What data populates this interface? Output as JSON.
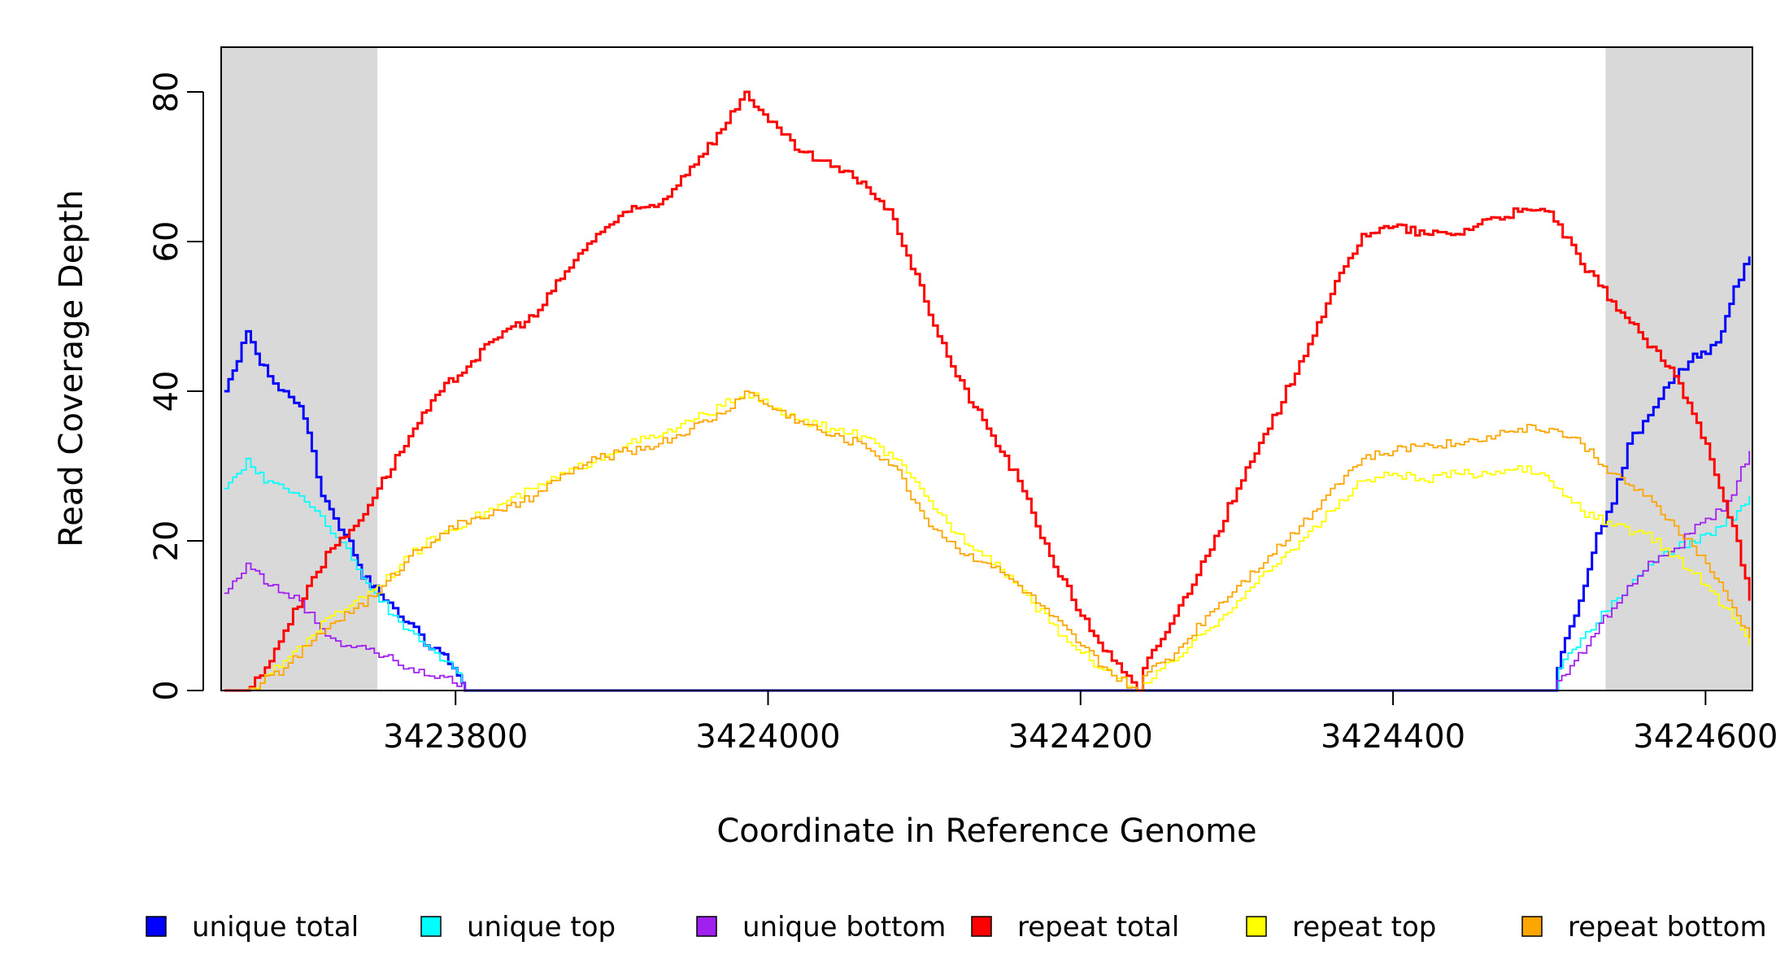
{
  "chart_data": {
    "type": "line",
    "title": "",
    "xlabel": "Coordinate in Reference Genome",
    "ylabel": "Read Coverage Depth",
    "xlim": [
      3423650,
      3424630
    ],
    "ylim": [
      0,
      85
    ],
    "x_ticks": [
      3423800,
      3424000,
      3424200,
      3424400,
      3424600
    ],
    "y_ticks": [
      0,
      20,
      40,
      60,
      80
    ],
    "grid": false,
    "legend_position": "bottom",
    "shaded_regions": [
      {
        "x_start": 3423650,
        "x_end": 3423750,
        "color": "#d9d9d9"
      },
      {
        "x_start": 3424536,
        "x_end": 3424630,
        "color": "#d9d9d9"
      }
    ],
    "series": [
      {
        "name": "unique total",
        "color": "#0000ff",
        "x": [
          3423652,
          3423660,
          3423666,
          3423672,
          3423680,
          3423690,
          3423700,
          3423708,
          3423714,
          3423722,
          3423732,
          3423740,
          3423748,
          3423760,
          3423770,
          3423780,
          3423790,
          3423798,
          3423804,
          3423806,
          3424502,
          3424505,
          3424510,
          3424516,
          3424522,
          3424530,
          3424540,
          3424550,
          3424560,
          3424570,
          3424580,
          3424592,
          3424600,
          3424610,
          3424618,
          3424628
        ],
        "y": [
          40,
          44,
          48,
          45,
          42,
          40,
          38,
          32,
          26,
          23,
          20,
          15,
          14,
          11,
          9,
          6,
          5,
          3,
          1,
          0,
          0,
          3,
          7,
          10,
          14,
          21,
          25,
          33,
          36,
          39,
          42,
          45,
          45,
          48,
          54,
          58
        ]
      },
      {
        "name": "unique top",
        "color": "#00ffff",
        "x": [
          3423652,
          3423660,
          3423666,
          3423672,
          3423680,
          3423690,
          3423700,
          3423710,
          3423720,
          3423730,
          3423740,
          3423748,
          3423760,
          3423770,
          3423780,
          3423790,
          3423798,
          3423804,
          3423806,
          3424502,
          3424506,
          3424512,
          3424520,
          3424530,
          3424540,
          3424550,
          3424560,
          3424570,
          3424580,
          3424590,
          3424600,
          3424610,
          3424620,
          3424628
        ],
        "y": [
          27,
          29,
          31,
          29,
          28,
          27,
          26,
          24,
          21,
          19,
          15,
          13,
          10,
          8,
          6,
          4,
          3,
          1,
          0,
          0,
          3,
          5,
          7,
          9,
          12,
          14,
          16,
          18,
          19,
          20,
          21,
          22,
          24,
          26
        ]
      },
      {
        "name": "unique bottom",
        "color": "#a020f0",
        "x": [
          3423652,
          3423660,
          3423666,
          3423672,
          3423680,
          3423690,
          3423700,
          3423710,
          3423720,
          3423730,
          3423740,
          3423748,
          3423760,
          3423770,
          3423780,
          3423790,
          3423798,
          3423804,
          3423806,
          3424502,
          3424508,
          3424516,
          3424524,
          3424532,
          3424540,
          3424550,
          3424560,
          3424570,
          3424580,
          3424590,
          3424600,
          3424610,
          3424620,
          3424628
        ],
        "y": [
          13,
          15,
          17,
          16,
          14,
          13,
          12,
          9,
          7,
          6,
          6,
          5,
          4,
          3,
          2,
          2,
          1,
          1,
          0,
          0,
          2,
          4,
          6,
          9,
          11,
          14,
          16,
          18,
          19,
          21,
          23,
          24,
          28,
          32
        ]
      },
      {
        "name": "repeat total",
        "color": "#ff0000",
        "x": [
          3423652,
          3423665,
          3423675,
          3423690,
          3423705,
          3423720,
          3423735,
          3423750,
          3423770,
          3423790,
          3423810,
          3423830,
          3423850,
          3423870,
          3423890,
          3423910,
          3423930,
          3423950,
          3423970,
          3423985,
          3424000,
          3424020,
          3424040,
          3424060,
          3424080,
          3424100,
          3424120,
          3424140,
          3424160,
          3424180,
          3424200,
          3424220,
          3424236,
          3424240,
          3424260,
          3424280,
          3424300,
          3424320,
          3424340,
          3424360,
          3424380,
          3424400,
          3424420,
          3424440,
          3424460,
          3424480,
          3424500,
          3424520,
          3424540,
          3424560,
          3424580,
          3424600,
          3424620,
          3424628
        ],
        "y": [
          0,
          0,
          2,
          8,
          14,
          19,
          22,
          27,
          34,
          40,
          44,
          48,
          50,
          56,
          61,
          64,
          65,
          70,
          75,
          80,
          76,
          72,
          70,
          68,
          63,
          52,
          42,
          35,
          28,
          18,
          10,
          4,
          0,
          3,
          10,
          18,
          27,
          35,
          44,
          53,
          61,
          62,
          61,
          61,
          63,
          64,
          64,
          57,
          52,
          47,
          42,
          33,
          20,
          12
        ]
      },
      {
        "name": "repeat top",
        "color": "#ffff00",
        "x": [
          3423652,
          3423665,
          3423675,
          3423690,
          3423705,
          3423720,
          3423735,
          3423750,
          3423770,
          3423790,
          3423810,
          3423830,
          3423850,
          3423870,
          3423890,
          3423910,
          3423930,
          3423950,
          3423970,
          3423985,
          3424000,
          3424020,
          3424040,
          3424060,
          3424080,
          3424100,
          3424120,
          3424140,
          3424160,
          3424180,
          3424200,
          3424220,
          3424236,
          3424240,
          3424260,
          3424280,
          3424300,
          3424320,
          3424340,
          3424360,
          3424380,
          3424400,
          3424420,
          3424440,
          3424460,
          3424480,
          3424500,
          3424520,
          3424540,
          3424560,
          3424580,
          3424600,
          3424620,
          3424628
        ],
        "y": [
          0,
          0,
          1,
          4,
          7,
          10,
          12,
          14,
          18,
          21,
          23,
          25,
          27,
          29,
          31,
          33,
          34,
          36,
          38,
          40,
          38,
          36,
          35,
          34,
          31,
          26,
          21,
          18,
          14,
          9,
          5,
          2,
          0,
          1,
          4,
          8,
          12,
          16,
          20,
          24,
          28,
          29,
          28,
          29,
          29,
          30,
          28,
          24,
          22,
          21,
          18,
          14,
          9,
          6
        ]
      },
      {
        "name": "repeat bottom",
        "color": "#ffa500",
        "x": [
          3423652,
          3423665,
          3423675,
          3423690,
          3423705,
          3423720,
          3423735,
          3423750,
          3423770,
          3423790,
          3423810,
          3423830,
          3423850,
          3423870,
          3423890,
          3423910,
          3423930,
          3423950,
          3423970,
          3423985,
          3424000,
          3424020,
          3424040,
          3424060,
          3424080,
          3424100,
          3424120,
          3424140,
          3424160,
          3424180,
          3424200,
          3424220,
          3424236,
          3424240,
          3424260,
          3424280,
          3424300,
          3424320,
          3424340,
          3424360,
          3424380,
          3424400,
          3424420,
          3424440,
          3424460,
          3424480,
          3424500,
          3424520,
          3424540,
          3424560,
          3424580,
          3424600,
          3424620,
          3424628
        ],
        "y": [
          0,
          0,
          1,
          3,
          6,
          9,
          11,
          13,
          18,
          21,
          23,
          24,
          26,
          29,
          31,
          32,
          33,
          35,
          37,
          40,
          38,
          36,
          34,
          33,
          30,
          23,
          19,
          17,
          14,
          10,
          6,
          2,
          0,
          2,
          5,
          10,
          14,
          18,
          22,
          27,
          31,
          32,
          33,
          33,
          34,
          35,
          35,
          33,
          29,
          26,
          22,
          17,
          10,
          7
        ]
      }
    ]
  }
}
